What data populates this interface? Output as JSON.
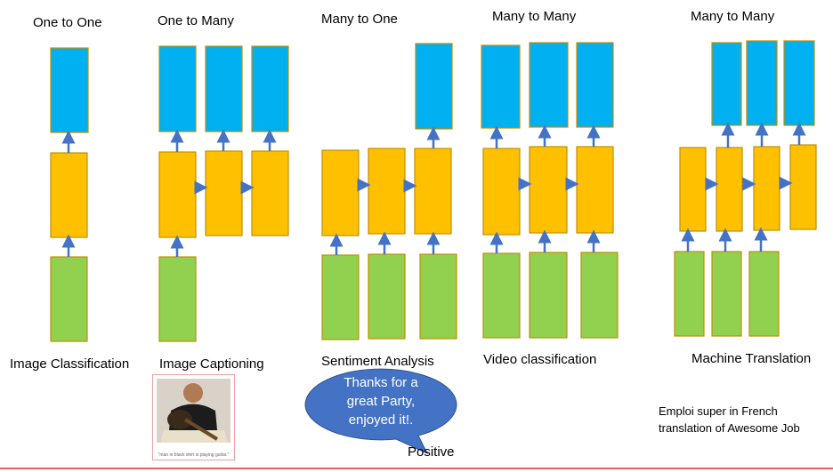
{
  "titles": [
    "One to One",
    "One to Many",
    "Many to One",
    "Many to Many",
    "Many to Many"
  ],
  "labels": [
    "Image Classification",
    "Image Captioning",
    "Sentiment Analysis",
    "Video classification",
    "Machine Translation"
  ],
  "caption": "\"man in black shirt is playing guitar.\"",
  "bubble": [
    "Thanks for a",
    "great Party,",
    "enjoyed it!."
  ],
  "sentiment": "Positive",
  "translation": [
    "Emploi super in French",
    "translation of Awesome Job"
  ],
  "colors": {
    "output": "#00b0f0",
    "hidden": "#ffc000",
    "input": "#92d050",
    "arrow": "#4472c4",
    "bubble": "#4472c4"
  }
}
